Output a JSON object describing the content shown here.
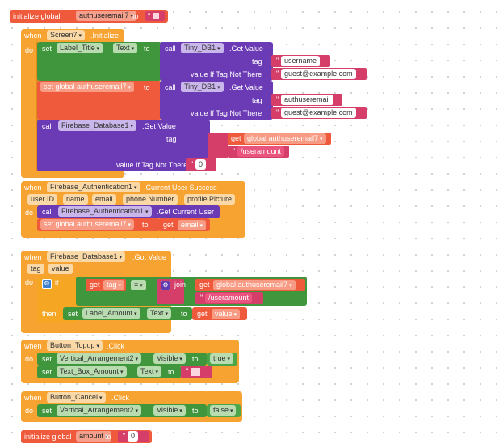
{
  "global1": {
    "kw": "initialize global",
    "name": "authuseremail7",
    "to": "to",
    "value": ""
  },
  "screen7": {
    "when": "when",
    "component": "Screen7",
    "event": ".Initialize",
    "do": "do"
  },
  "set_label_title": {
    "set": "set",
    "component": "Label_Title",
    "prop": "Text",
    "to": "to"
  },
  "tinydb1": {
    "call": "call",
    "component": "Tiny_DB1",
    "method": ".Get Value",
    "tag": "tag",
    "value_if": "value If Tag Not There",
    "tag_val": "username",
    "default_val": "guest@example.com"
  },
  "set_global_email": {
    "set": "set global authuseremail7",
    "to": "to"
  },
  "tinydb2": {
    "call": "call",
    "component": "Tiny_DB1",
    "method": ".Get Value",
    "tag": "tag",
    "value_if": "value If Tag Not There",
    "tag_val": "authuseremail",
    "default_val": "guest@example.com"
  },
  "firebase_get": {
    "call": "call",
    "component": "Firebase_Database1",
    "method": ".Get Value",
    "tag": "tag",
    "join": "join",
    "get": "get",
    "global_var": "global authuseremail7",
    "suffix": "/useramount",
    "value_if": "value If Tag Not There",
    "default_val": "0"
  },
  "auth_success": {
    "when": "when",
    "component": "Firebase_Authentication1",
    "event": ".Current User Success",
    "params": [
      "user ID",
      "name",
      "email",
      "phone Number",
      "profile Picture"
    ],
    "do": "do",
    "call": "call",
    "call_component": "Firebase_Authentication1",
    "call_method": ".Get Current User",
    "set": "set global authuseremail7",
    "to": "to",
    "get": "get",
    "get_var": "email"
  },
  "got_value": {
    "when": "when",
    "component": "Firebase_Database1",
    "event": ".Got Value",
    "params": [
      "tag",
      "value"
    ],
    "do": "do",
    "if": "if",
    "get": "get",
    "tag_var": "tag",
    "eq": "=",
    "join": "join",
    "get2": "get",
    "global_var": "global authuseremail7",
    "suffix": "/useramount",
    "then": "then",
    "set": "set",
    "label": "Label_Amount",
    "prop": "Text",
    "to": "to",
    "get3": "get",
    "value_var": "value"
  },
  "topup": {
    "when": "when",
    "component": "Button_Topup",
    "event": ".Click",
    "do": "do",
    "set1": "set",
    "arr": "Vertical_Arrangement2",
    "visible": "Visible",
    "to": "to",
    "true_val": "true",
    "set2": "set",
    "textbox": "Text_Box_Amount",
    "text_prop": "Text",
    "to2": "to"
  },
  "cancel": {
    "when": "when",
    "component": "Button_Cancel",
    "event": ".Click",
    "do": "do",
    "set": "set",
    "arr": "Vertical_Arrangement2",
    "visible": "Visible",
    "to": "to",
    "false_val": "false"
  },
  "global2": {
    "kw": "initialize global",
    "name": "amount",
    "to": "to",
    "value": "0"
  }
}
